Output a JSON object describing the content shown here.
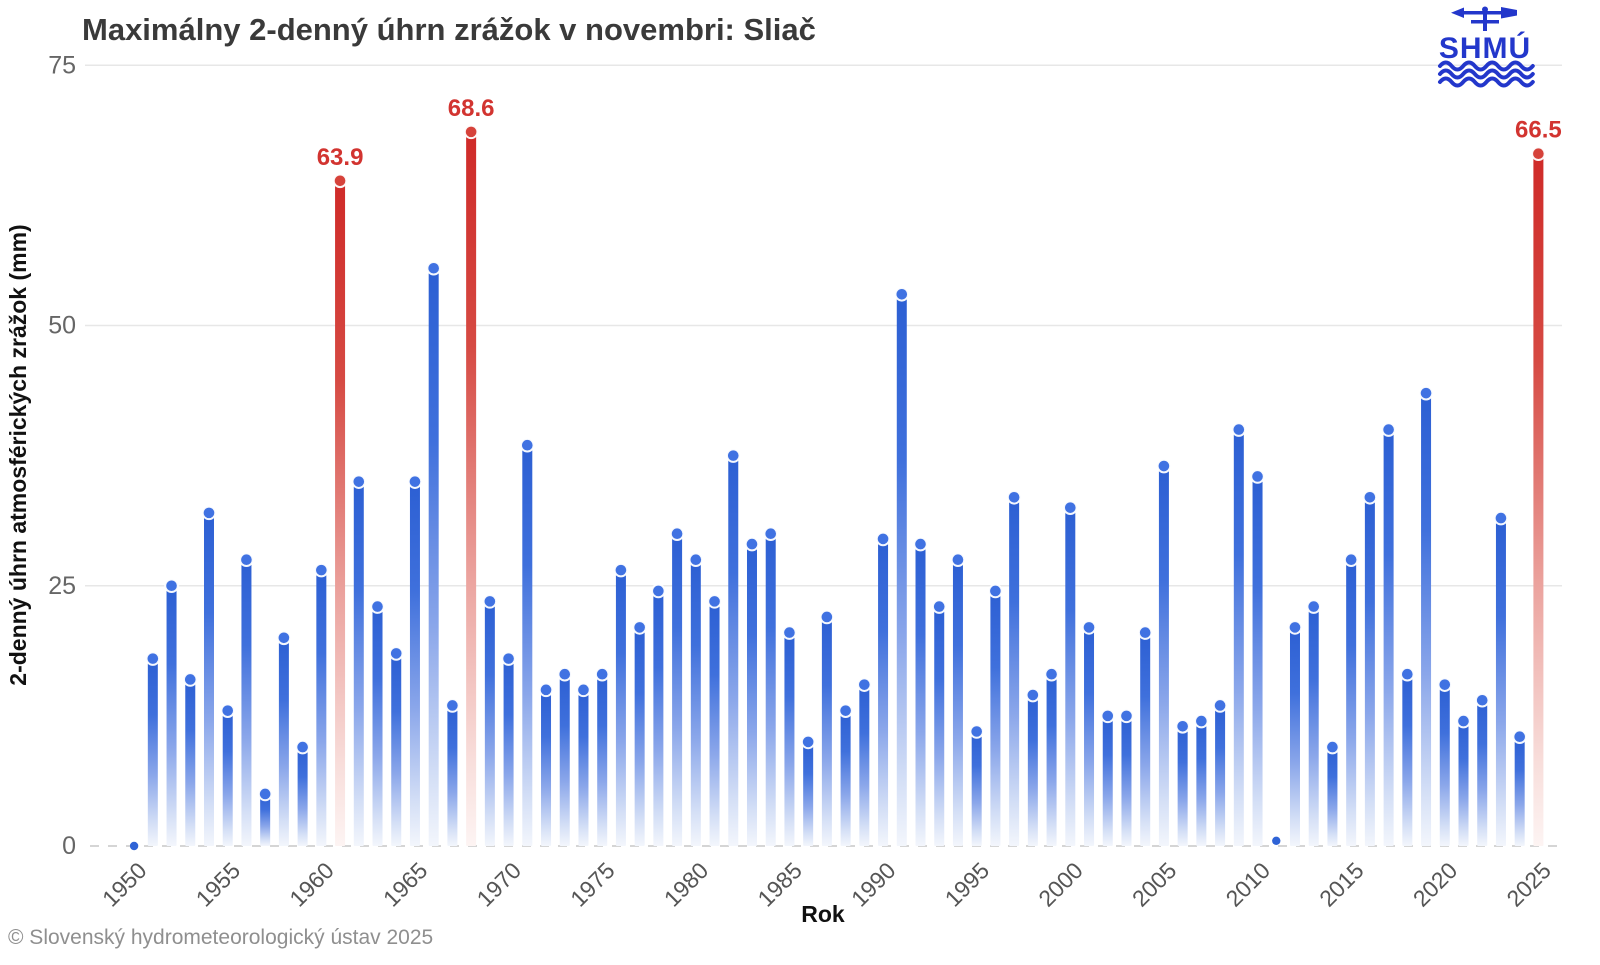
{
  "header": {
    "title": "Maximálny 2-denný úhrn zrážok v novembri: Sliač",
    "logo": {
      "text": "SHMÚ",
      "color": "#2337cb"
    }
  },
  "footer": {
    "copyright": "© Slovenský hydrometeorologický ústav 2025"
  },
  "chart_data": {
    "type": "bar",
    "title": "Maximálny 2-denný úhrn zrážok v novembri: Sliač",
    "xlabel": "Rok",
    "ylabel": "2-denný úhrn atmosférických zrážok (mm)",
    "ylim": [
      0,
      75
    ],
    "yticks": [
      0,
      25,
      50,
      75
    ],
    "xticks": [
      1950,
      1955,
      1960,
      1965,
      1970,
      1975,
      1980,
      1985,
      1990,
      1995,
      2000,
      2005,
      2010,
      2015,
      2020,
      2025
    ],
    "grid": "horizontal-light",
    "legend": "none",
    "bar_color": "#2f63d6",
    "marker_color": "#4072e2",
    "highlight_color": "#d23430",
    "categories": [
      1950,
      1951,
      1952,
      1953,
      1954,
      1955,
      1956,
      1957,
      1958,
      1959,
      1960,
      1961,
      1962,
      1963,
      1964,
      1965,
      1966,
      1967,
      1968,
      1969,
      1970,
      1971,
      1972,
      1973,
      1974,
      1975,
      1976,
      1977,
      1978,
      1979,
      1980,
      1981,
      1982,
      1983,
      1984,
      1985,
      1986,
      1987,
      1988,
      1989,
      1990,
      1991,
      1992,
      1993,
      1994,
      1995,
      1996,
      1997,
      1998,
      1999,
      2000,
      2001,
      2002,
      2003,
      2004,
      2005,
      2006,
      2007,
      2008,
      2009,
      2010,
      2011,
      2012,
      2013,
      2014,
      2015,
      2016,
      2017,
      2018,
      2019,
      2020,
      2021,
      2022,
      2023,
      2024,
      2025
    ],
    "values": [
      0,
      18,
      25,
      16,
      32,
      13,
      27.5,
      5,
      20,
      9.5,
      26.5,
      63.9,
      35,
      23,
      18.5,
      35,
      55.5,
      13.5,
      68.6,
      23.5,
      18,
      38.5,
      15,
      16.5,
      15,
      16.5,
      26.5,
      21,
      24.5,
      30,
      27.5,
      23.5,
      37.5,
      29,
      30,
      20.5,
      10,
      22,
      13,
      15.5,
      29.5,
      53,
      29,
      23,
      27.5,
      11,
      24.5,
      33.5,
      14.5,
      16.5,
      32.5,
      21,
      12.5,
      12.5,
      20.5,
      36.5,
      11.5,
      12,
      13.5,
      40,
      35.5,
      0.5,
      21,
      23,
      9.5,
      27.5,
      33.5,
      40,
      16.5,
      43.5,
      15.5,
      12,
      14,
      31.5,
      10.5,
      66.5
    ],
    "highlighted_years": [
      1961,
      1968,
      2025
    ],
    "value_labels": [
      {
        "year": 1961,
        "label": "63.9"
      },
      {
        "year": 1968,
        "label": "68.6"
      },
      {
        "year": 2025,
        "label": "66.5"
      }
    ]
  }
}
